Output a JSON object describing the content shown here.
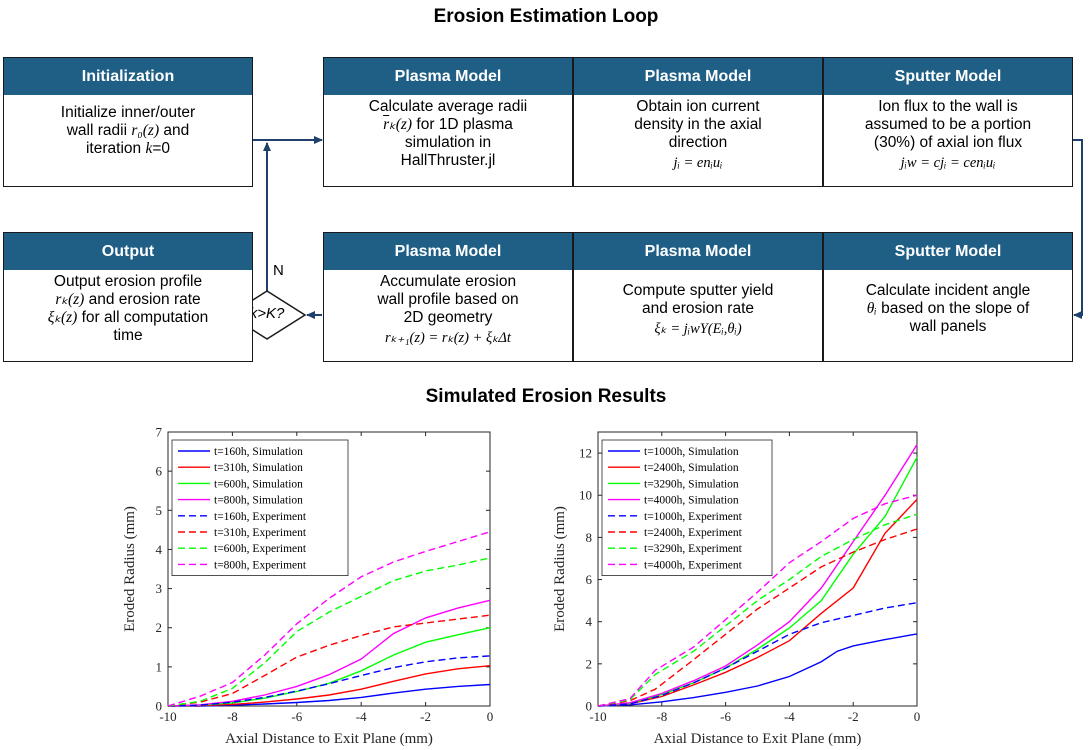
{
  "titles": {
    "loop": "Erosion Estimation Loop",
    "results": "Simulated Erosion Results"
  },
  "boxes": {
    "init": {
      "header": "Initialization",
      "line1": "Initialize inner/outer",
      "line2a": "wall radii ",
      "line2b": "r₀(z)",
      "line2c": " and",
      "line3a": "iteration ",
      "line3b": "k",
      "line3c": "=0"
    },
    "plasma1": {
      "header": "Plasma Model",
      "line1": "Calculate average radii",
      "line2a": "r",
      "line2b": "ₖ(z)",
      "line2c": " for 1D plasma",
      "line3": "simulation in",
      "line4": "HallThruster.jl"
    },
    "plasma2": {
      "header": "Plasma Model",
      "line1": "Obtain ion current",
      "line2": "density in the axial",
      "line3": "direction",
      "eq": "jᵢ = enᵢuᵢ"
    },
    "sputter1": {
      "header": "Sputter Model",
      "line1": "Ion flux to the wall is",
      "line2": "assumed to be a portion",
      "line3": "(30%) of axial ion flux",
      "eq": "jᵢw = cjᵢ = cenᵢuᵢ"
    },
    "output": {
      "header": "Output",
      "line1": "Output erosion profile",
      "line2a": "rₖ(z)",
      "line2b": " and erosion rate",
      "line3a": "ξₖ(z)",
      "line3b": " for all computation",
      "line4": "time"
    },
    "plasma3": {
      "header": "Plasma Model",
      "line1": "Accumulate erosion",
      "line2": "wall profile based on",
      "line3": "2D geometry",
      "eq": "rₖ₊₁(z) = rₖ(z) + ξₖΔt"
    },
    "plasma4": {
      "header": "Plasma Model",
      "line1": "Compute sputter yield",
      "line2": "and erosion rate",
      "eq": "ξₖ = jᵢwY(Eᵢ,θᵢ)"
    },
    "sputter2": {
      "header": "Sputter Model",
      "line1": "Calculate incident angle",
      "line2a": "θᵢ",
      "line2b": " based on the slope of",
      "line3": "wall panels"
    }
  },
  "decision": {
    "label": "k>K?",
    "yes": "Y",
    "no": "N"
  },
  "chart_data": [
    {
      "type": "line",
      "xlabel": "Axial Distance to Exit Plane (mm)",
      "ylabel": "Eroded Radius (mm)",
      "xlim": [
        -10,
        0
      ],
      "ylim": [
        0,
        7
      ],
      "xticks": [
        -10,
        -8,
        -6,
        -4,
        -2,
        0
      ],
      "yticks": [
        0,
        1,
        2,
        3,
        4,
        5,
        6,
        7
      ],
      "legend_position": "top-left",
      "series": [
        {
          "name": "t=160h, Simulation",
          "color": "#0000ff",
          "dash": false,
          "x": [
            -10,
            -9,
            -8,
            -7,
            -6,
            -5,
            -4,
            -3,
            -2,
            -1,
            0
          ],
          "y": [
            0,
            0,
            0.02,
            0.05,
            0.09,
            0.14,
            0.22,
            0.33,
            0.43,
            0.5,
            0.55
          ]
        },
        {
          "name": "t=310h, Simulation",
          "color": "#ff0000",
          "dash": false,
          "x": [
            -10,
            -9,
            -8,
            -7,
            -6,
            -5,
            -4,
            -3,
            -2,
            -1,
            0
          ],
          "y": [
            0,
            0.01,
            0.04,
            0.1,
            0.18,
            0.28,
            0.43,
            0.63,
            0.82,
            0.95,
            1.03
          ]
        },
        {
          "name": "t=600h, Simulation",
          "color": "#00ff00",
          "dash": false,
          "x": [
            -10,
            -9,
            -8,
            -7,
            -6,
            -5,
            -4,
            -3,
            -2,
            -1,
            0
          ],
          "y": [
            0,
            0.02,
            0.08,
            0.2,
            0.37,
            0.58,
            0.9,
            1.3,
            1.63,
            1.82,
            2.0
          ]
        },
        {
          "name": "t=800h, Simulation",
          "color": "#ff00ff",
          "dash": false,
          "x": [
            -10,
            -9,
            -8,
            -7,
            -6,
            -5,
            -4,
            -3,
            -2,
            -1,
            0
          ],
          "y": [
            0,
            0.03,
            0.12,
            0.28,
            0.5,
            0.8,
            1.2,
            1.85,
            2.25,
            2.5,
            2.7
          ]
        },
        {
          "name": "t=160h, Experiment",
          "color": "#0000ff",
          "dash": true,
          "x": [
            -10,
            -9,
            -8,
            -7,
            -6,
            -5,
            -4,
            -3,
            -2,
            -1,
            0
          ],
          "y": [
            0,
            0.02,
            0.1,
            0.22,
            0.38,
            0.57,
            0.78,
            0.98,
            1.13,
            1.23,
            1.28
          ]
        },
        {
          "name": "t=310h, Experiment",
          "color": "#ff0000",
          "dash": true,
          "x": [
            -10,
            -9,
            -8,
            -7,
            -6,
            -5,
            -4,
            -3,
            -2,
            -1,
            0
          ],
          "y": [
            0,
            0.1,
            0.32,
            0.78,
            1.25,
            1.55,
            1.8,
            2.02,
            2.12,
            2.22,
            2.32
          ]
        },
        {
          "name": "t=600h, Experiment",
          "color": "#00ff00",
          "dash": true,
          "x": [
            -10,
            -9,
            -8,
            -7,
            -6,
            -5,
            -4,
            -3,
            -2,
            -1,
            0
          ],
          "y": [
            0,
            0.12,
            0.45,
            1.1,
            1.9,
            2.4,
            2.8,
            3.2,
            3.45,
            3.6,
            3.78
          ]
        },
        {
          "name": "t=800h, Experiment",
          "color": "#ff00ff",
          "dash": true,
          "x": [
            -10,
            -9,
            -8,
            -7,
            -6,
            -5,
            -4,
            -3,
            -2,
            -1,
            0
          ],
          "y": [
            0,
            0.25,
            0.6,
            1.3,
            2.1,
            2.75,
            3.3,
            3.68,
            3.95,
            4.2,
            4.45
          ]
        }
      ]
    },
    {
      "type": "line",
      "xlabel": "Axial Distance to Exit Plane (mm)",
      "ylabel": "Eroded Radius (mm)",
      "xlim": [
        -10,
        0
      ],
      "ylim": [
        0,
        13
      ],
      "xticks": [
        -10,
        -8,
        -6,
        -4,
        -2,
        0
      ],
      "yticks": [
        0,
        2,
        4,
        6,
        8,
        10,
        12
      ],
      "legend_position": "top-left",
      "series": [
        {
          "name": "t=1000h, Simulation",
          "color": "#0000ff",
          "dash": false,
          "x": [
            -10,
            -9,
            -8,
            -7,
            -6,
            -5,
            -4,
            -3,
            -2.5,
            -2,
            -1,
            0
          ],
          "y": [
            0,
            0.05,
            0.2,
            0.4,
            0.65,
            0.95,
            1.4,
            2.1,
            2.6,
            2.85,
            3.15,
            3.42
          ]
        },
        {
          "name": "t=2400h, Simulation",
          "color": "#ff0000",
          "dash": false,
          "x": [
            -10,
            -9,
            -8,
            -7,
            -6,
            -5,
            -4,
            -3,
            -2,
            -1,
            0
          ],
          "y": [
            0,
            0.1,
            0.45,
            1.0,
            1.6,
            2.3,
            3.1,
            4.4,
            5.6,
            8.2,
            9.8
          ]
        },
        {
          "name": "t=3290h, Simulation",
          "color": "#00ff00",
          "dash": false,
          "x": [
            -10,
            -9,
            -8,
            -7,
            -6,
            -5,
            -4,
            -3,
            -2,
            -1,
            0
          ],
          "y": [
            0,
            0.12,
            0.55,
            1.1,
            1.8,
            2.7,
            3.7,
            5.0,
            7.2,
            9.0,
            11.8
          ]
        },
        {
          "name": "t=4000h, Simulation",
          "color": "#ff00ff",
          "dash": false,
          "x": [
            -10,
            -9,
            -8,
            -7,
            -6,
            -5,
            -4,
            -3,
            -2,
            -1,
            0
          ],
          "y": [
            0,
            0.15,
            0.6,
            1.2,
            1.9,
            2.9,
            4.0,
            5.6,
            7.8,
            10.0,
            12.4
          ]
        },
        {
          "name": "t=1000h, Experiment",
          "color": "#0000ff",
          "dash": true,
          "x": [
            -10,
            -9,
            -8,
            -7,
            -6,
            -5,
            -4,
            -3,
            -2,
            -1,
            0
          ],
          "y": [
            0,
            0.1,
            0.5,
            1.1,
            1.8,
            2.6,
            3.4,
            3.95,
            4.3,
            4.65,
            4.9
          ]
        },
        {
          "name": "t=2400h, Experiment",
          "color": "#ff0000",
          "dash": true,
          "x": [
            -10,
            -9,
            -8.2,
            -7,
            -6,
            -5,
            -4,
            -3,
            -2,
            -1,
            0
          ],
          "y": [
            0,
            0.25,
            0.8,
            2.2,
            3.4,
            4.6,
            5.6,
            6.6,
            7.3,
            7.9,
            8.4
          ]
        },
        {
          "name": "t=3290h, Experiment",
          "color": "#00ff00",
          "dash": true,
          "x": [
            -10,
            -9,
            -8.2,
            -7,
            -6,
            -5,
            -4,
            -3,
            -2,
            -1,
            0
          ],
          "y": [
            0,
            0.3,
            1.5,
            2.6,
            3.8,
            5.0,
            6.0,
            7.1,
            7.9,
            8.6,
            9.1
          ]
        },
        {
          "name": "t=4000h, Experiment",
          "color": "#ff00ff",
          "dash": true,
          "x": [
            -10,
            -9,
            -8.2,
            -7,
            -6,
            -5,
            -4,
            -3,
            -2,
            -1,
            0
          ],
          "y": [
            0,
            0.35,
            1.7,
            2.8,
            4.1,
            5.4,
            6.8,
            7.8,
            8.9,
            9.6,
            10.0
          ]
        }
      ]
    }
  ]
}
